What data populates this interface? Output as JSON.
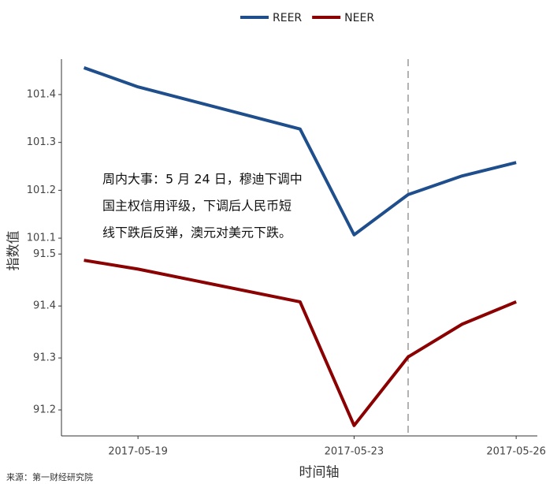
{
  "chart_data": [
    {
      "type": "line",
      "x": [
        "2017-05-18",
        "2017-05-19",
        "2017-05-22",
        "2017-05-23",
        "2017-05-24",
        "2017-05-25",
        "2017-05-26"
      ],
      "series": [
        {
          "name": "REER",
          "color": "#1f4e8c",
          "values": [
            101.456,
            101.416,
            101.328,
            101.107,
            101.191,
            101.23,
            101.258
          ]
        }
      ],
      "xlim": [
        "2017-05-17T14:00",
        "2017-05-26T08:00"
      ],
      "ylim": [
        101.087,
        101.474
      ],
      "yticks": [
        101.1,
        101.2,
        101.3,
        101.4
      ],
      "annotation": [
        "周内大事：5 月 24 日，穆迪下调中",
        "国主权信用评级，下调后人民币短",
        "线下跌后反弹，澳元对美元下跌。"
      ]
    },
    {
      "type": "line",
      "x": [
        "2017-05-18",
        "2017-05-19",
        "2017-05-22",
        "2017-05-23",
        "2017-05-24",
        "2017-05-25",
        "2017-05-26"
      ],
      "series": [
        {
          "name": "NEER",
          "color": "#8b0000",
          "values": [
            91.488,
            91.471,
            91.408,
            91.17,
            91.302,
            91.365,
            91.408
          ]
        }
      ],
      "xlim": [
        "2017-05-17T14:00",
        "2017-05-26T08:00"
      ],
      "ylim": [
        91.15,
        91.511
      ],
      "yticks": [
        91.2,
        91.3,
        91.4,
        91.5
      ],
      "xticks": [
        "2017-05-19",
        "2017-05-23",
        "2017-05-26"
      ],
      "x_label": "时间轴"
    }
  ],
  "y_label": "指数值",
  "vline": "2017-05-24",
  "source": "来源：第一财经研究院"
}
